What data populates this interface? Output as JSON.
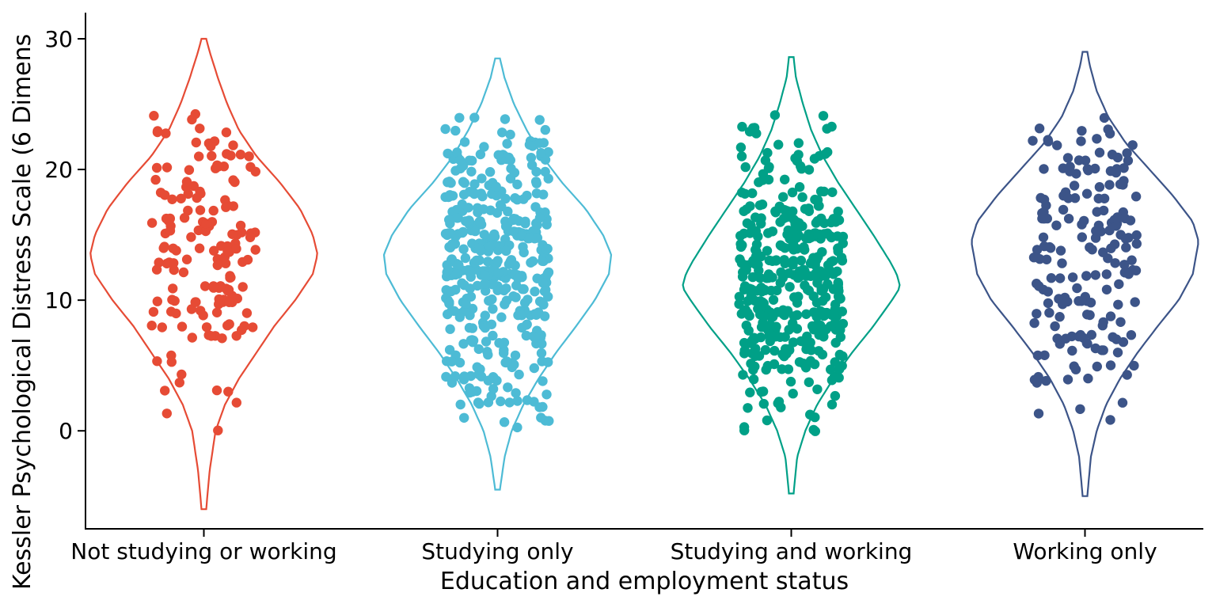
{
  "chart_data": {
    "type": "violin",
    "xlabel": "Education and employment status",
    "ylabel": "Kessler Psychological Distress Scale (6 Dimens",
    "categories": [
      "Not studying or working",
      "Studying only",
      "Studying and working",
      "Working only"
    ],
    "colors": [
      "#E64B35",
      "#4DBBD5",
      "#00A087",
      "#3C5488"
    ],
    "y_ticks": [
      0,
      10,
      20,
      30
    ],
    "ylim": [
      -7.5,
      32
    ],
    "grid": false,
    "legend": "none",
    "series": [
      {
        "category": "Not studying or working",
        "y_range": [
          -6,
          30
        ],
        "density_y": [
          -6,
          -3,
          0,
          2,
          4,
          6,
          8,
          10,
          12,
          13.5,
          15,
          17,
          19,
          21,
          23,
          25,
          27,
          29,
          30
        ],
        "density_w": [
          0.02,
          0.05,
          0.1,
          0.18,
          0.3,
          0.45,
          0.6,
          0.78,
          0.93,
          0.97,
          0.93,
          0.82,
          0.65,
          0.45,
          0.3,
          0.2,
          0.12,
          0.05,
          0.02
        ],
        "point_count": 160,
        "point_range": [
          0,
          24.3
        ]
      },
      {
        "category": "Studying only",
        "y_range": [
          -4.5,
          28.5
        ],
        "density_y": [
          -4.5,
          -2,
          0,
          2,
          4,
          6,
          8,
          10,
          12,
          13.5,
          15,
          17,
          19,
          21,
          23,
          25,
          27,
          28.5
        ],
        "density_w": [
          0.02,
          0.06,
          0.12,
          0.22,
          0.35,
          0.5,
          0.67,
          0.83,
          0.95,
          0.97,
          0.9,
          0.75,
          0.55,
          0.38,
          0.25,
          0.14,
          0.06,
          0.02
        ],
        "point_count": 420,
        "point_range": [
          -0.3,
          24.3
        ]
      },
      {
        "category": "Studying and working",
        "y_range": [
          -4.8,
          28.6
        ],
        "density_y": [
          -4.8,
          -2,
          0,
          2,
          4,
          6,
          8,
          10,
          11,
          12,
          13,
          15,
          17,
          19,
          21,
          23,
          25,
          27,
          28.6
        ],
        "density_w": [
          0.02,
          0.05,
          0.12,
          0.22,
          0.36,
          0.52,
          0.7,
          0.86,
          0.93,
          0.9,
          0.84,
          0.7,
          0.55,
          0.4,
          0.27,
          0.17,
          0.1,
          0.04,
          0.02
        ],
        "point_count": 400,
        "point_range": [
          -0.5,
          24.2
        ]
      },
      {
        "category": "Working only",
        "y_range": [
          -5,
          29
        ],
        "density_y": [
          -5,
          -2,
          0,
          2,
          4,
          6,
          8,
          10,
          12,
          14.5,
          16,
          18,
          20,
          22,
          24,
          26,
          28,
          29
        ],
        "density_w": [
          0.02,
          0.05,
          0.1,
          0.18,
          0.3,
          0.45,
          0.62,
          0.8,
          0.92,
          0.97,
          0.92,
          0.75,
          0.55,
          0.35,
          0.2,
          0.1,
          0.04,
          0.02
        ],
        "point_count": 180,
        "point_range": [
          -0.1,
          24.4
        ]
      }
    ]
  }
}
